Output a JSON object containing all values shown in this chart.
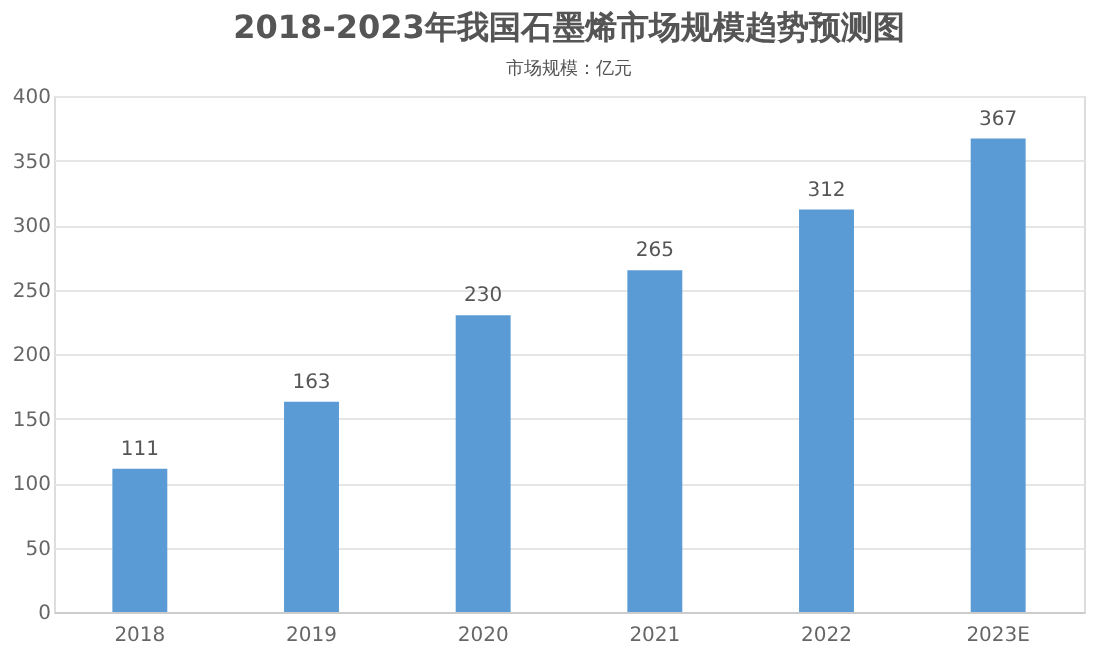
{
  "chart_data": {
    "type": "bar",
    "title": "2018-2023年我国石墨烯市场规模趋势预测图",
    "subtitle": "市场规模：亿元",
    "categories": [
      "2018",
      "2019",
      "2020",
      "2021",
      "2022",
      "2023E"
    ],
    "values": [
      111,
      163,
      230,
      265,
      312,
      367
    ],
    "color": "#5b9bd5",
    "ylim": [
      0,
      400
    ],
    "yticks": [
      0,
      50,
      100,
      150,
      200,
      250,
      300,
      350,
      400
    ],
    "grid": "y",
    "data_labels": true
  }
}
